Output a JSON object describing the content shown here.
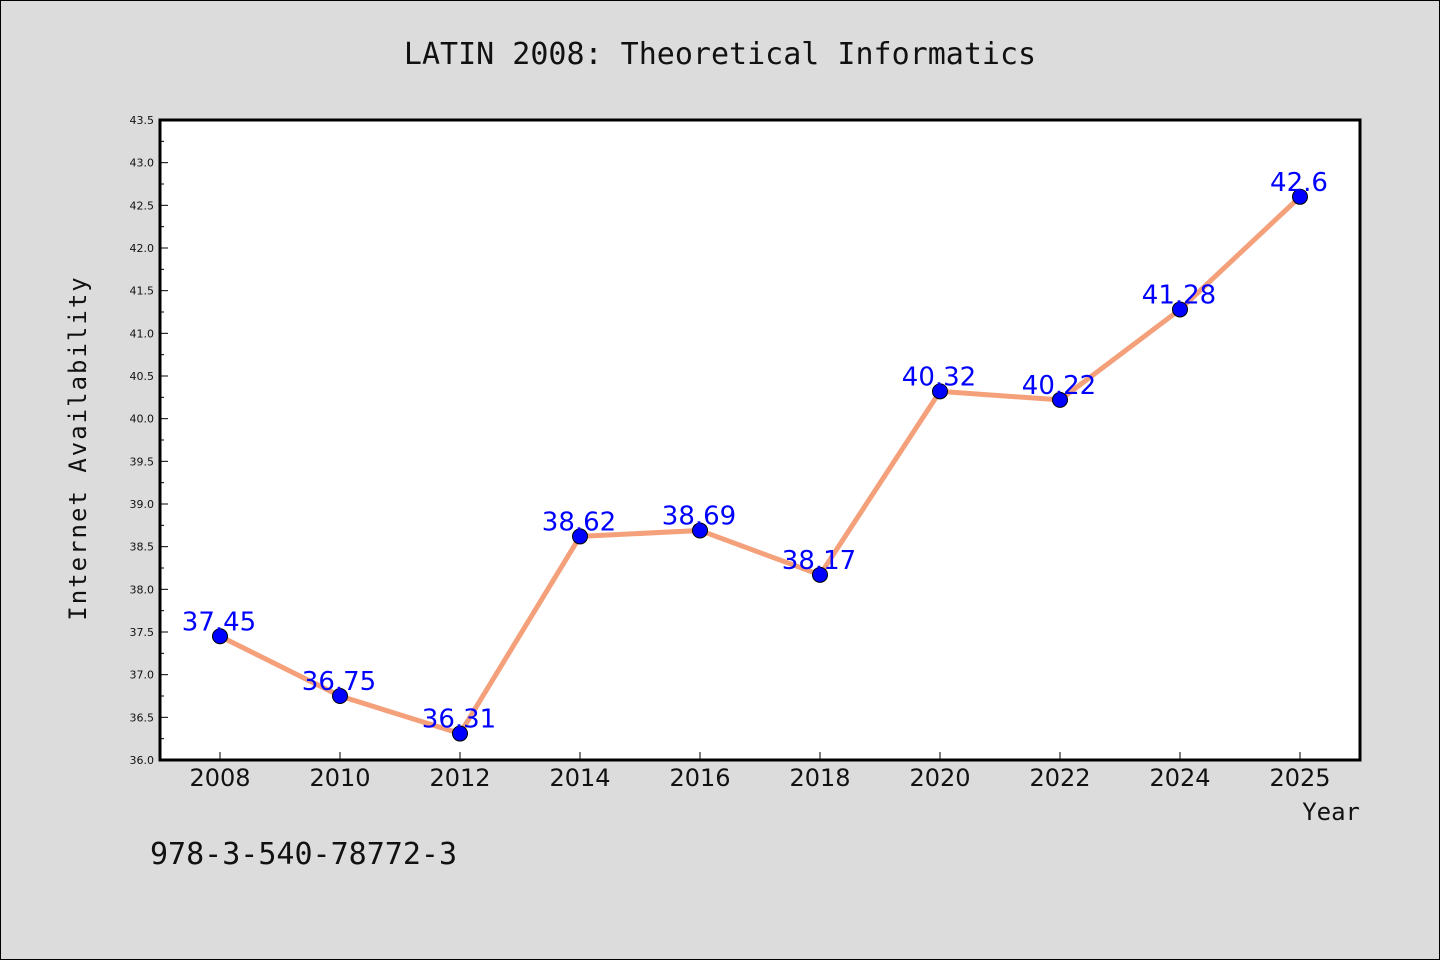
{
  "chart_data": {
    "type": "line",
    "title": "LATIN 2008: Theoretical Informatics",
    "xlabel": "Year",
    "ylabel": "Internet Availability",
    "categories": [
      "2008",
      "2010",
      "2012",
      "2014",
      "2016",
      "2018",
      "2020",
      "2022",
      "2024",
      "2025"
    ],
    "series": [
      {
        "values": [
          37.45,
          36.75,
          36.31,
          38.62,
          38.69,
          38.17,
          40.32,
          40.22,
          41.28,
          42.6
        ],
        "labels": [
          "37.45",
          "36.75",
          "36.31",
          "38.62",
          "38.69",
          "38.17",
          "40.32",
          "40.22",
          "41.28",
          "42.6"
        ],
        "line_color": "#f4a07a",
        "marker_color": "#0000ff"
      }
    ],
    "yticks": [
      "36.0",
      "36.5",
      "37.0",
      "37.5",
      "38.0",
      "38.5",
      "39.0",
      "39.5",
      "40.0",
      "40.5",
      "41.0",
      "41.5",
      "42.0",
      "42.5",
      "43.0",
      "43.5"
    ],
    "ylim": [
      36.0,
      43.5
    ],
    "grid": false,
    "legend": "none",
    "label_color": "#0000ff"
  },
  "footer": {
    "isbn": "978-3-540-78772-3"
  }
}
